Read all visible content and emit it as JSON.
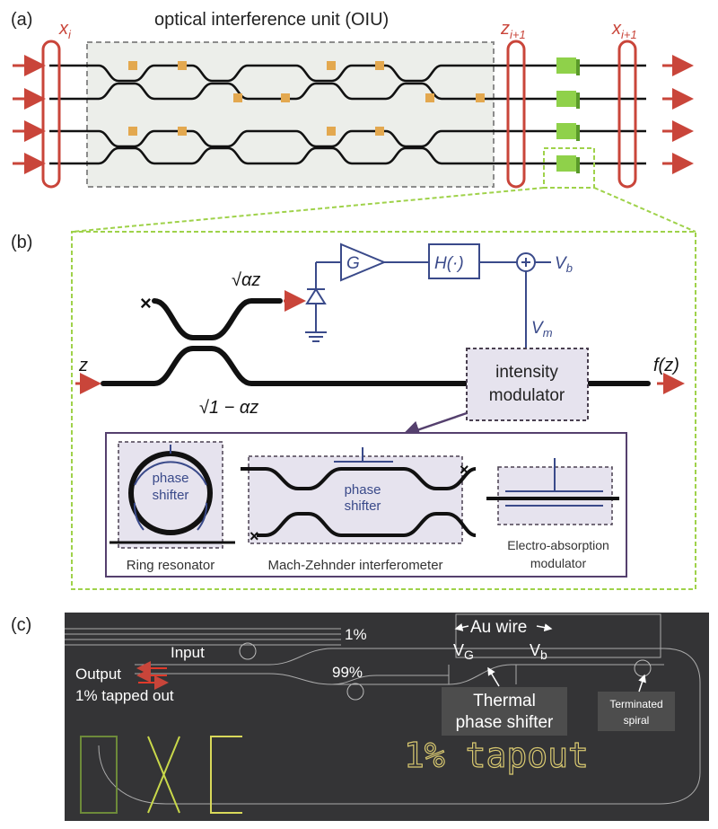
{
  "panel_a": {
    "label": "(a)",
    "oiu_title": "optical interference unit (OIU)",
    "x_i": "x",
    "x_i_sub": "i",
    "z_next": "z",
    "z_next_sub": "i+1",
    "x_next": "x",
    "x_next_sub": "i+1"
  },
  "panel_b": {
    "label": "(b)",
    "tap_signal": "√αz",
    "through_signal": "√1 − αz",
    "input": "z",
    "output": "f(z)",
    "amp": "G",
    "filter": "H(·)",
    "vb": "V",
    "vb_sub": "b",
    "vm": "V",
    "vm_sub": "m",
    "modulator_line1": "intensity",
    "modulator_line2": "modulator",
    "ring_label": "Ring  resonator",
    "ring_phase_1": "phase",
    "ring_phase_2": "shifter",
    "mzi_label": "Mach-Zehnder interferometer",
    "mzi_phase_1": "phase",
    "mzi_phase_2": "shifter",
    "eam_label_1": "Electro-absorption",
    "eam_label_2": "modulator"
  },
  "panel_c": {
    "label": "(c)",
    "au_wire": "Au wire",
    "one_pct": "1%",
    "ninety_nine_pct": "99%",
    "input": "Input",
    "output": "Output",
    "tapped": "1% tapped out",
    "vg": "V",
    "vg_sub": "G",
    "vb": "V",
    "vb_sub": "b",
    "thermal_1": "Thermal",
    "thermal_2": "phase shifter",
    "terminated_1": "Terminated",
    "terminated_2": "spiral",
    "etched_text": "1% tapout"
  },
  "colors": {
    "accent_red": "#c9453a",
    "circuit_blue": "#3a4a8a",
    "dashed_green": "#9fd24a",
    "shifter_orange": "#e3a84f",
    "nonlinearity_green": "#8fd14a"
  }
}
